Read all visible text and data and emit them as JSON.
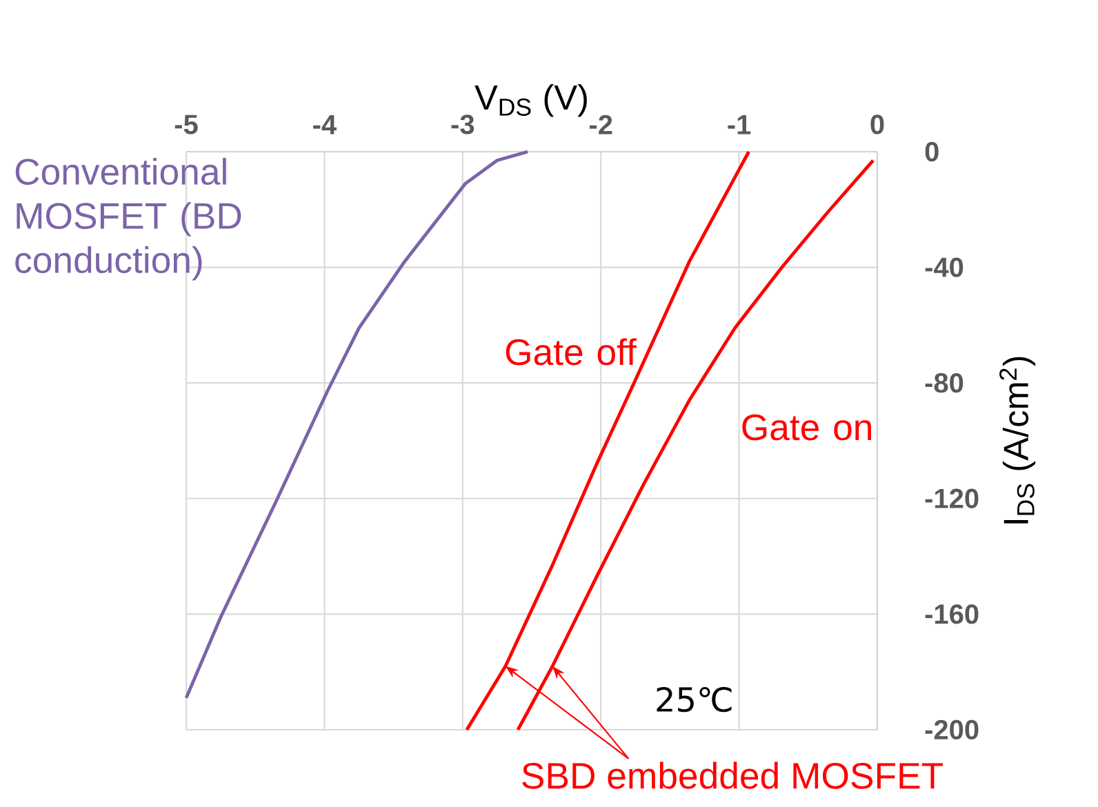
{
  "chart_data": {
    "type": "line",
    "xlabel": "V$_{DS}$ (V)",
    "ylabel": "I$_{DS}$ (A/cm$^{2}$)",
    "xlim": [
      -5,
      0
    ],
    "xticks": [
      -5,
      -4,
      -3,
      -2,
      -1,
      0
    ],
    "ylim": [
      -200,
      0
    ],
    "yticks": [
      0,
      -40,
      -80,
      -120,
      -160,
      -200
    ],
    "grid": true,
    "legend": false,
    "series": [
      {
        "name": "Conventional MOSFET (BD conduction)",
        "color": "#7b64a8",
        "x": [
          -5,
          -4.75,
          -4.35,
          -3.98,
          -3.75,
          -3.42,
          -2.98,
          -2.75,
          -2.53
        ],
        "values": [
          -189,
          -161,
          -121,
          -83,
          -61,
          -38,
          -11,
          -3,
          0
        ]
      },
      {
        "name": "Gate off",
        "color": "#ff0000",
        "x": [
          -2.97,
          -2.69,
          -2.35,
          -2.03,
          -1.76,
          -1.36,
          -0.93
        ],
        "values": [
          -200,
          -178,
          -143,
          -108,
          -80,
          -38,
          0
        ]
      },
      {
        "name": "Gate on",
        "color": "#ff0000",
        "x": [
          -2.6,
          -2.35,
          -2.03,
          -1.69,
          -1.36,
          -1.03,
          -0.69,
          -0.36,
          -0.03
        ],
        "values": [
          -200,
          -178,
          -147,
          -115,
          -86,
          -61,
          -40,
          -21,
          -3
        ]
      }
    ],
    "annotations": [
      "25℃",
      {
        "text": "SBD embedded MOSFET",
        "x": -2.69,
        "y": -178
      }
    ]
  }
}
